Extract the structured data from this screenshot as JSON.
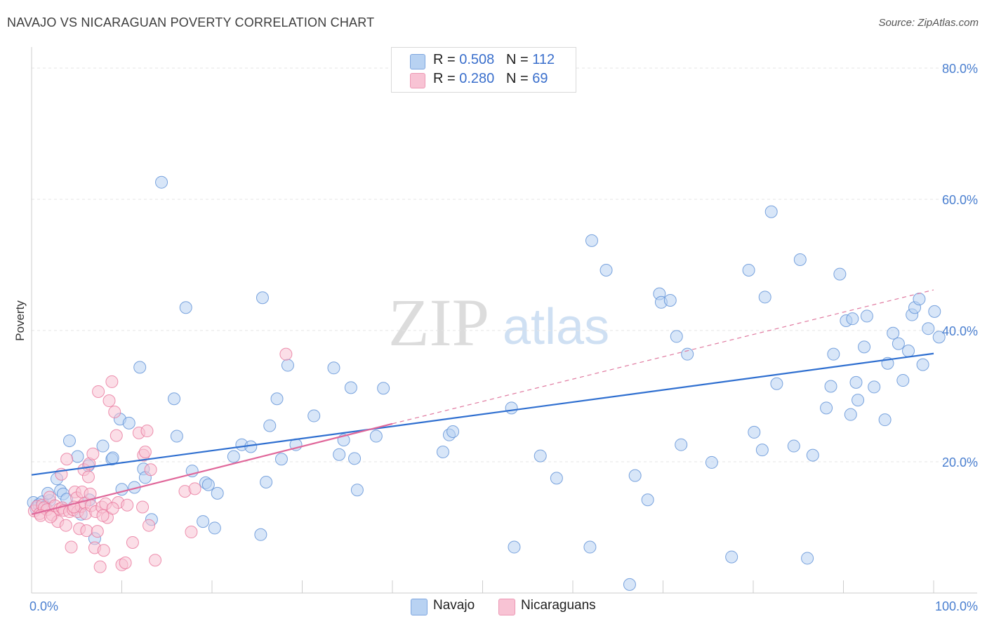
{
  "title": "NAVAJO VS NICARAGUAN POVERTY CORRELATION CHART",
  "source": "Source: ZipAtlas.com",
  "watermark": {
    "zip": "ZIP",
    "atlas": "atlas"
  },
  "legend": [
    {
      "r_label": "R =",
      "r_value": "0.508",
      "n_label": "N =",
      "n_value": "112",
      "color": "#a9c8f0"
    },
    {
      "r_label": "R =",
      "r_value": "0.280",
      "n_label": "N =",
      "n_value": "69",
      "color": "#f5b7cb"
    }
  ],
  "bottom_legend": [
    {
      "label": "Navajo",
      "color": "#a9c8f0"
    },
    {
      "label": "Nicaraguans",
      "color": "#f5b7cb"
    }
  ],
  "chart_data": {
    "type": "scatter",
    "title": "NAVAJO VS NICARAGUAN POVERTY CORRELATION CHART",
    "xlabel": "",
    "ylabel": "Poverty",
    "xlim": [
      0,
      100
    ],
    "ylim": [
      0,
      80
    ],
    "x_tick_labels": [
      "0.0%",
      "100.0%"
    ],
    "y_ticks": [
      20,
      40,
      60,
      80
    ],
    "y_tick_labels": [
      "20.0%",
      "40.0%",
      "60.0%",
      "80.0%"
    ],
    "grid": true,
    "series": [
      {
        "name": "Navajo",
        "color": "#5b8fd6",
        "fill": "#b8d2f2",
        "r": 0.508,
        "n": 112,
        "trend": {
          "x0": 0,
          "y0": 18.0,
          "x1": 100,
          "y1": 36.5
        },
        "points": [
          [
            0.2,
            13.8
          ],
          [
            0.5,
            12.9
          ],
          [
            0.8,
            13.5
          ],
          [
            1.2,
            13.9
          ],
          [
            1.5,
            13.2
          ],
          [
            2.0,
            14.1
          ],
          [
            1.8,
            15.2
          ],
          [
            2.8,
            17.4
          ],
          [
            3.2,
            15.6
          ],
          [
            3.5,
            15.1
          ],
          [
            3.9,
            14.3
          ],
          [
            4.2,
            23.2
          ],
          [
            5.1,
            20.8
          ],
          [
            5.5,
            12.0
          ],
          [
            6.3,
            19.4
          ],
          [
            6.4,
            14.2
          ],
          [
            7.0,
            8.3
          ],
          [
            7.9,
            22.4
          ],
          [
            8.9,
            20.4
          ],
          [
            9.0,
            20.6
          ],
          [
            9.8,
            26.5
          ],
          [
            10.0,
            15.8
          ],
          [
            10.8,
            25.9
          ],
          [
            11.4,
            16.1
          ],
          [
            12.0,
            34.4
          ],
          [
            12.4,
            18.9
          ],
          [
            12.6,
            17.6
          ],
          [
            13.3,
            11.2
          ],
          [
            14.4,
            62.6
          ],
          [
            15.8,
            29.6
          ],
          [
            16.1,
            23.9
          ],
          [
            17.1,
            43.5
          ],
          [
            17.8,
            18.6
          ],
          [
            19.0,
            10.9
          ],
          [
            19.3,
            16.8
          ],
          [
            19.6,
            16.5
          ],
          [
            20.3,
            9.9
          ],
          [
            20.6,
            15.2
          ],
          [
            22.4,
            20.8
          ],
          [
            23.3,
            22.6
          ],
          [
            24.3,
            22.3
          ],
          [
            25.6,
            45.0
          ],
          [
            26.0,
            16.9
          ],
          [
            25.4,
            8.9
          ],
          [
            26.4,
            25.5
          ],
          [
            27.2,
            29.6
          ],
          [
            27.7,
            20.4
          ],
          [
            28.4,
            34.7
          ],
          [
            29.3,
            22.6
          ],
          [
            31.3,
            27.0
          ],
          [
            33.5,
            34.3
          ],
          [
            34.1,
            21.1
          ],
          [
            34.6,
            23.3
          ],
          [
            35.4,
            31.3
          ],
          [
            35.8,
            20.5
          ],
          [
            36.1,
            15.7
          ],
          [
            38.2,
            23.9
          ],
          [
            39.0,
            31.2
          ],
          [
            45.6,
            21.5
          ],
          [
            46.3,
            24.1
          ],
          [
            46.7,
            24.6
          ],
          [
            53.2,
            28.2
          ],
          [
            53.5,
            7.0
          ],
          [
            56.4,
            20.9
          ],
          [
            58.2,
            17.5
          ],
          [
            61.9,
            7.0
          ],
          [
            62.1,
            53.7
          ],
          [
            63.7,
            49.2
          ],
          [
            66.3,
            1.3
          ],
          [
            66.9,
            17.9
          ],
          [
            68.3,
            14.2
          ],
          [
            69.6,
            45.6
          ],
          [
            69.8,
            44.3
          ],
          [
            70.8,
            44.6
          ],
          [
            71.5,
            39.1
          ],
          [
            72.0,
            22.6
          ],
          [
            72.7,
            36.4
          ],
          [
            75.4,
            19.9
          ],
          [
            77.6,
            5.5
          ],
          [
            79.5,
            49.2
          ],
          [
            80.1,
            24.5
          ],
          [
            81.0,
            21.8
          ],
          [
            81.3,
            45.1
          ],
          [
            82.0,
            58.1
          ],
          [
            82.6,
            31.9
          ],
          [
            84.5,
            22.4
          ],
          [
            85.2,
            50.8
          ],
          [
            86.0,
            5.3
          ],
          [
            86.6,
            21.0
          ],
          [
            88.1,
            28.2
          ],
          [
            88.6,
            31.5
          ],
          [
            88.9,
            36.4
          ],
          [
            89.6,
            48.6
          ],
          [
            90.3,
            41.5
          ],
          [
            90.8,
            27.2
          ],
          [
            91.0,
            41.8
          ],
          [
            91.4,
            32.1
          ],
          [
            91.6,
            29.4
          ],
          [
            92.3,
            37.5
          ],
          [
            92.6,
            42.2
          ],
          [
            93.4,
            31.4
          ],
          [
            94.6,
            26.4
          ],
          [
            94.9,
            35.0
          ],
          [
            95.5,
            39.6
          ],
          [
            96.1,
            38.0
          ],
          [
            96.6,
            32.4
          ],
          [
            97.2,
            36.9
          ],
          [
            97.6,
            42.4
          ],
          [
            97.9,
            43.5
          ],
          [
            98.4,
            44.8
          ],
          [
            98.8,
            34.8
          ],
          [
            99.4,
            40.3
          ],
          [
            100.1,
            42.9
          ],
          [
            100.6,
            39.0
          ]
        ]
      },
      {
        "name": "Nicaraguans",
        "color": "#e8769b",
        "fill": "#f8c3d4",
        "r": 0.28,
        "n": 69,
        "trend": {
          "x0": 0,
          "y0": 12.0,
          "x1": 40,
          "y1": 25.8
        },
        "trend_dashed": {
          "x0": 40,
          "y0": 25.8,
          "x1": 100,
          "y1": 46.2
        },
        "points": [
          [
            0.3,
            12.5
          ],
          [
            0.6,
            13.2
          ],
          [
            0.9,
            12.1
          ],
          [
            1.2,
            13.4
          ],
          [
            1.4,
            13.0
          ],
          [
            1.7,
            12.7
          ],
          [
            2.0,
            14.6
          ],
          [
            2.3,
            11.9
          ],
          [
            2.6,
            13.3
          ],
          [
            2.9,
            10.9
          ],
          [
            3.1,
            12.8
          ],
          [
            3.3,
            18.1
          ],
          [
            3.4,
            13.0
          ],
          [
            3.6,
            12.6
          ],
          [
            3.8,
            10.3
          ],
          [
            3.9,
            20.4
          ],
          [
            4.2,
            12.4
          ],
          [
            4.4,
            7.0
          ],
          [
            4.6,
            12.7
          ],
          [
            4.8,
            15.4
          ],
          [
            5.0,
            14.5
          ],
          [
            5.1,
            12.4
          ],
          [
            5.3,
            9.8
          ],
          [
            5.5,
            13.2
          ],
          [
            5.6,
            15.4
          ],
          [
            5.8,
            18.8
          ],
          [
            5.9,
            13.7
          ],
          [
            6.0,
            12.1
          ],
          [
            6.1,
            9.5
          ],
          [
            6.3,
            17.7
          ],
          [
            6.4,
            19.7
          ],
          [
            6.5,
            15.1
          ],
          [
            6.6,
            13.3
          ],
          [
            6.8,
            21.2
          ],
          [
            7.0,
            6.9
          ],
          [
            7.1,
            12.4
          ],
          [
            7.3,
            9.4
          ],
          [
            7.4,
            30.7
          ],
          [
            7.6,
            4.0
          ],
          [
            7.8,
            13.1
          ],
          [
            8.0,
            6.5
          ],
          [
            8.2,
            13.6
          ],
          [
            8.4,
            11.5
          ],
          [
            8.6,
            29.3
          ],
          [
            8.9,
            32.2
          ],
          [
            9.2,
            27.6
          ],
          [
            9.4,
            24.0
          ],
          [
            9.6,
            13.8
          ],
          [
            10.0,
            4.3
          ],
          [
            10.4,
            4.6
          ],
          [
            11.2,
            7.7
          ],
          [
            11.9,
            24.4
          ],
          [
            12.3,
            13.1
          ],
          [
            12.4,
            21.0
          ],
          [
            12.6,
            21.5
          ],
          [
            12.8,
            24.7
          ],
          [
            13.0,
            10.3
          ],
          [
            13.2,
            18.8
          ],
          [
            13.7,
            5.0
          ],
          [
            17.0,
            15.5
          ],
          [
            17.7,
            9.3
          ],
          [
            18.1,
            15.9
          ],
          [
            28.2,
            36.4
          ],
          [
            1.0,
            11.8
          ],
          [
            2.1,
            11.6
          ],
          [
            4.7,
            13.1
          ],
          [
            7.9,
            11.8
          ],
          [
            9.0,
            12.9
          ],
          [
            10.6,
            13.4
          ]
        ]
      }
    ]
  }
}
